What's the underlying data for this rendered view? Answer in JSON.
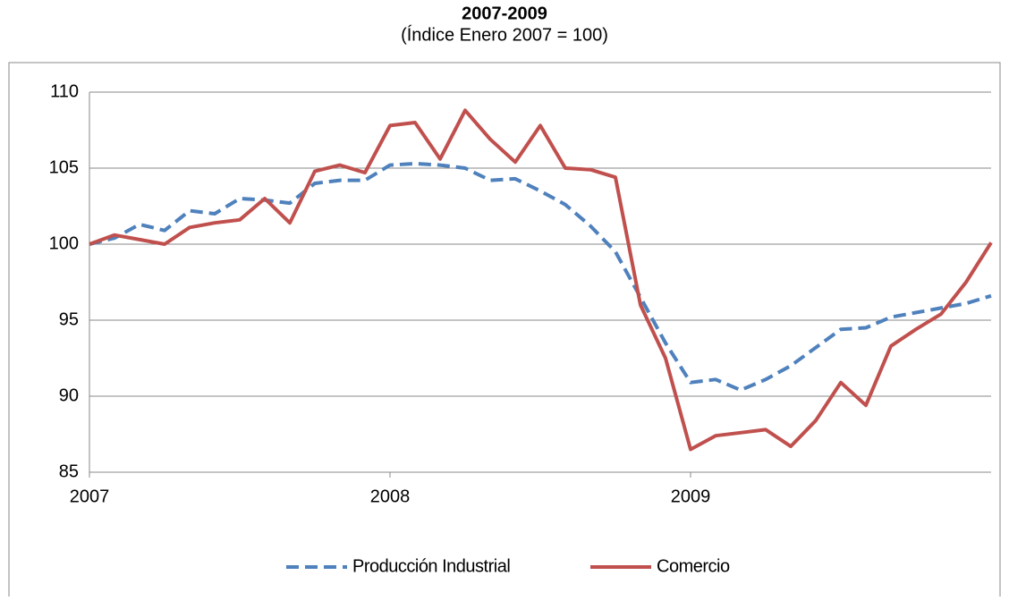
{
  "chart_data": {
    "type": "line",
    "title": "2007-2009",
    "subtitle": "(Índice Enero 2007 = 100)",
    "categories": [
      "2007",
      null,
      null,
      null,
      null,
      null,
      null,
      null,
      null,
      null,
      null,
      null,
      "2008",
      null,
      null,
      null,
      null,
      null,
      null,
      null,
      null,
      null,
      null,
      null,
      "2009",
      null,
      null,
      null,
      null,
      null,
      null,
      null,
      null,
      null,
      null,
      null,
      null
    ],
    "series": [
      {
        "name": "Producción Industrial",
        "color": "#4f81bd",
        "dash": true,
        "values": [
          100,
          100.4,
          101.3,
          100.9,
          102.2,
          102.0,
          103.0,
          102.9,
          102.7,
          104.0,
          104.2,
          104.2,
          105.2,
          105.3,
          105.2,
          105.0,
          104.2,
          104.3,
          103.5,
          102.6,
          101.2,
          99.5,
          96.5,
          93.5,
          90.9,
          91.1,
          90.4,
          91.1,
          92.0,
          93.2,
          94.4,
          94.5,
          95.2,
          95.5,
          95.8,
          96.1,
          96.6
        ]
      },
      {
        "name": "Comercio",
        "color": "#c0504d",
        "dash": false,
        "values": [
          100,
          100.6,
          100.3,
          100.0,
          101.1,
          101.4,
          101.6,
          103.0,
          101.4,
          104.8,
          105.2,
          104.7,
          107.8,
          108.0,
          105.6,
          108.8,
          106.9,
          105.4,
          107.8,
          105.0,
          104.9,
          104.4,
          96.0,
          92.5,
          86.5,
          87.4,
          87.6,
          87.8,
          86.7,
          88.4,
          90.9,
          89.4,
          93.3,
          94.4,
          95.4,
          97.5,
          100.1
        ]
      }
    ],
    "ylim": [
      85,
      110
    ],
    "yticks": [
      85,
      90,
      95,
      100,
      105,
      110
    ],
    "grid": true,
    "legend": "bottom"
  }
}
